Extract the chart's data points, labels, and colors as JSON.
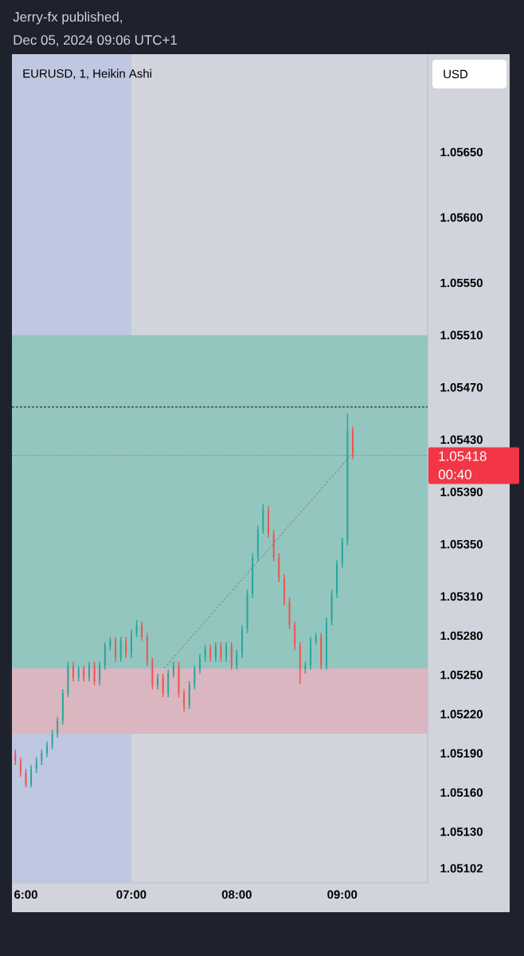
{
  "chart_data": {
    "type": "candlestick",
    "title": "Jerry-fx published,",
    "subtitle": "Dec 05, 2024 09:06 UTC+1",
    "annotations": [
      "EURUSD, 1, Heikin Ashi",
      "USD",
      "00:40"
    ],
    "x": [
      5.9,
      5.95,
      6.0,
      6.05,
      6.1,
      6.15,
      6.2,
      6.25,
      6.3,
      6.35,
      6.4,
      6.45,
      6.5,
      6.55,
      6.6,
      6.65,
      6.7,
      6.75,
      6.8,
      6.85,
      6.9,
      6.95,
      7.0,
      7.05,
      7.1,
      7.15,
      7.2,
      7.25,
      7.3,
      7.35,
      7.4,
      7.45,
      7.5,
      7.55,
      7.6,
      7.65,
      7.7,
      7.75,
      7.8,
      7.85,
      7.9,
      7.95,
      8.0,
      8.05,
      8.1,
      8.15,
      8.2,
      8.25,
      8.3,
      8.35,
      8.4,
      8.45,
      8.5,
      8.55,
      8.6,
      8.65,
      8.7,
      8.75,
      8.8,
      8.85,
      8.9,
      8.95,
      9.0,
      9.05,
      9.1
    ],
    "ohlc": [
      [
        1.0519,
        1.05193,
        1.05181,
        1.05184
      ],
      [
        1.05184,
        1.05187,
        1.05172,
        1.05175
      ],
      [
        1.05175,
        1.05178,
        1.05164,
        1.05166
      ],
      [
        1.05166,
        1.05181,
        1.05164,
        1.05178
      ],
      [
        1.05178,
        1.05187,
        1.05175,
        1.05184
      ],
      [
        1.05184,
        1.05193,
        1.05181,
        1.0519
      ],
      [
        1.0519,
        1.05199,
        1.05187,
        1.05196
      ],
      [
        1.05196,
        1.05208,
        1.05193,
        1.05205
      ],
      [
        1.05205,
        1.05218,
        1.05202,
        1.05215
      ],
      [
        1.05215,
        1.05239,
        1.05212,
        1.05236
      ],
      [
        1.05236,
        1.0526,
        1.05233,
        1.05257
      ],
      [
        1.05257,
        1.0526,
        1.05245,
        1.05248
      ],
      [
        1.05248,
        1.05257,
        1.05245,
        1.05254
      ],
      [
        1.05254,
        1.05257,
        1.05245,
        1.05248
      ],
      [
        1.05248,
        1.0526,
        1.05245,
        1.05257
      ],
      [
        1.05257,
        1.0526,
        1.05242,
        1.05245
      ],
      [
        1.05245,
        1.0526,
        1.05242,
        1.05257
      ],
      [
        1.05257,
        1.05275,
        1.05254,
        1.05272
      ],
      [
        1.05272,
        1.05279,
        1.05269,
        1.05276
      ],
      [
        1.05276,
        1.05279,
        1.0526,
        1.05263
      ],
      [
        1.05263,
        1.05279,
        1.0526,
        1.05276
      ],
      [
        1.05276,
        1.05279,
        1.05263,
        1.05266
      ],
      [
        1.05266,
        1.05285,
        1.05263,
        1.05282
      ],
      [
        1.05282,
        1.05292,
        1.05279,
        1.05288
      ],
      [
        1.05288,
        1.05291,
        1.05276,
        1.05279
      ],
      [
        1.05279,
        1.05282,
        1.05257,
        1.0526
      ],
      [
        1.0526,
        1.05263,
        1.05239,
        1.05242
      ],
      [
        1.05242,
        1.05251,
        1.05239,
        1.05248
      ],
      [
        1.05248,
        1.05251,
        1.05233,
        1.05236
      ],
      [
        1.05236,
        1.05254,
        1.05233,
        1.05251
      ],
      [
        1.05251,
        1.0526,
        1.05248,
        1.05257
      ],
      [
        1.05257,
        1.0526,
        1.05233,
        1.05236
      ],
      [
        1.05236,
        1.05239,
        1.05222,
        1.05227
      ],
      [
        1.05227,
        1.05245,
        1.05224,
        1.05242
      ],
      [
        1.05242,
        1.05257,
        1.05239,
        1.05254
      ],
      [
        1.05254,
        1.05266,
        1.05251,
        1.05263
      ],
      [
        1.05263,
        1.05273,
        1.0526,
        1.0527
      ],
      [
        1.0527,
        1.05273,
        1.0526,
        1.05263
      ],
      [
        1.05263,
        1.05275,
        1.0526,
        1.05272
      ],
      [
        1.05272,
        1.05275,
        1.0526,
        1.05263
      ],
      [
        1.05263,
        1.05275,
        1.0526,
        1.05272
      ],
      [
        1.05272,
        1.05275,
        1.05254,
        1.05257
      ],
      [
        1.05257,
        1.05269,
        1.05254,
        1.05266
      ],
      [
        1.05266,
        1.05288,
        1.05263,
        1.05285
      ],
      [
        1.05285,
        1.05315,
        1.05282,
        1.05312
      ],
      [
        1.05312,
        1.05343,
        1.05309,
        1.0534
      ],
      [
        1.0534,
        1.05364,
        1.05337,
        1.05361
      ],
      [
        1.05361,
        1.05381,
        1.05358,
        1.05376
      ],
      [
        1.05376,
        1.05379,
        1.05355,
        1.05358
      ],
      [
        1.05358,
        1.05361,
        1.05337,
        1.0534
      ],
      [
        1.0534,
        1.05343,
        1.05321,
        1.05324
      ],
      [
        1.05324,
        1.05327,
        1.05303,
        1.05306
      ],
      [
        1.05306,
        1.05309,
        1.05285,
        1.05288
      ],
      [
        1.05288,
        1.05291,
        1.05269,
        1.05272
      ],
      [
        1.05272,
        1.05275,
        1.05243,
        1.05254
      ],
      [
        1.05254,
        1.0526,
        1.05251,
        1.05257
      ],
      [
        1.05257,
        1.05279,
        1.05254,
        1.05276
      ],
      [
        1.05276,
        1.05282,
        1.05273,
        1.05279
      ],
      [
        1.05279,
        1.05282,
        1.05254,
        1.05257
      ],
      [
        1.05257,
        1.05294,
        1.05254,
        1.05291
      ],
      [
        1.05291,
        1.05315,
        1.05288,
        1.05312
      ],
      [
        1.05312,
        1.05338,
        1.05309,
        1.05335
      ],
      [
        1.05335,
        1.05355,
        1.05332,
        1.05352
      ],
      [
        1.05352,
        1.0545,
        1.05349,
        1.05437
      ],
      [
        1.05437,
        1.0544,
        1.05415,
        1.05418
      ]
    ],
    "colors": [
      "#ef5350",
      "#ef5350",
      "#ef5350",
      "#26a69a",
      "#26a69a",
      "#26a69a",
      "#26a69a",
      "#26a69a",
      "#26a69a",
      "#26a69a",
      "#26a69a",
      "#ef5350",
      "#26a69a",
      "#ef5350",
      "#26a69a",
      "#ef5350",
      "#26a69a",
      "#26a69a",
      "#26a69a",
      "#ef5350",
      "#26a69a",
      "#ef5350",
      "#26a69a",
      "#26a69a",
      "#ef5350",
      "#ef5350",
      "#ef5350",
      "#26a69a",
      "#ef5350",
      "#26a69a",
      "#26a69a",
      "#ef5350",
      "#ef5350",
      "#26a69a",
      "#26a69a",
      "#26a69a",
      "#26a69a",
      "#ef5350",
      "#26a69a",
      "#ef5350",
      "#26a69a",
      "#ef5350",
      "#26a69a",
      "#26a69a",
      "#26a69a",
      "#26a69a",
      "#26a69a",
      "#26a69a",
      "#ef5350",
      "#ef5350",
      "#ef5350",
      "#ef5350",
      "#ef5350",
      "#ef5350",
      "#ef5350",
      "#26a69a",
      "#26a69a",
      "#26a69a",
      "#ef5350",
      "#26a69a",
      "#26a69a",
      "#26a69a",
      "#26a69a",
      "#26a69a",
      "#ef5350"
    ],
    "series": [
      {
        "type": "line",
        "x": [
          7.31,
          9.08
        ],
        "values": [
          1.05255,
          1.05418
        ],
        "color": "#787b86",
        "line_style": "dashed"
      }
    ],
    "xlim": [
      5.868,
      9.81
    ],
    "ylim": [
      1.05091,
      1.05725
    ],
    "xticks": [
      {
        "value": 6,
        "label": "6:00"
      },
      {
        "value": 7,
        "label": "07:00"
      },
      {
        "value": 8,
        "label": "08:00"
      },
      {
        "value": 9,
        "label": "09:00"
      }
    ],
    "yticks": [
      1.05102,
      {
        "value": 1.0513,
        "label": "1.05130"
      },
      {
        "value": 1.0516,
        "label": "1.05160"
      },
      {
        "value": 1.0519,
        "label": "1.05190"
      },
      {
        "value": 1.0522,
        "label": "1.05220"
      },
      {
        "value": 1.0525,
        "label": "1.05250"
      },
      {
        "value": 1.0528,
        "label": "1.05280"
      },
      {
        "value": 1.0531,
        "label": "1.05310"
      },
      {
        "value": 1.0535,
        "label": "1.05350"
      },
      {
        "value": 1.0539,
        "label": "1.05390"
      },
      {
        "value": 1.0543,
        "label": "1.05430"
      },
      {
        "value": 1.0547,
        "label": "1.05470"
      },
      {
        "value": 1.0551,
        "label": "1.05510"
      },
      {
        "value": 1.0555,
        "label": "1.05550"
      },
      {
        "value": 1.056,
        "label": "1.05600"
      },
      {
        "value": 1.0565,
        "label": "1.05650"
      }
    ],
    "bands": [
      {
        "axis": "x",
        "from": 5.868,
        "to": 7.0,
        "color": "#bfc8e0"
      },
      {
        "axis": "y",
        "from": 1.05255,
        "to": 1.0551,
        "color": "#93c6bf"
      },
      {
        "axis": "y",
        "from": 1.05205,
        "to": 1.05255,
        "color": "#d9b6c0"
      }
    ],
    "ref_lines": [
      {
        "axis": "y",
        "value": 1.05418,
        "label": "1.05418",
        "color": "#f23645",
        "line_style": "dotted"
      },
      {
        "axis": "y",
        "value": 1.05455,
        "color": "#000000",
        "line_style": "dashed"
      }
    ]
  }
}
